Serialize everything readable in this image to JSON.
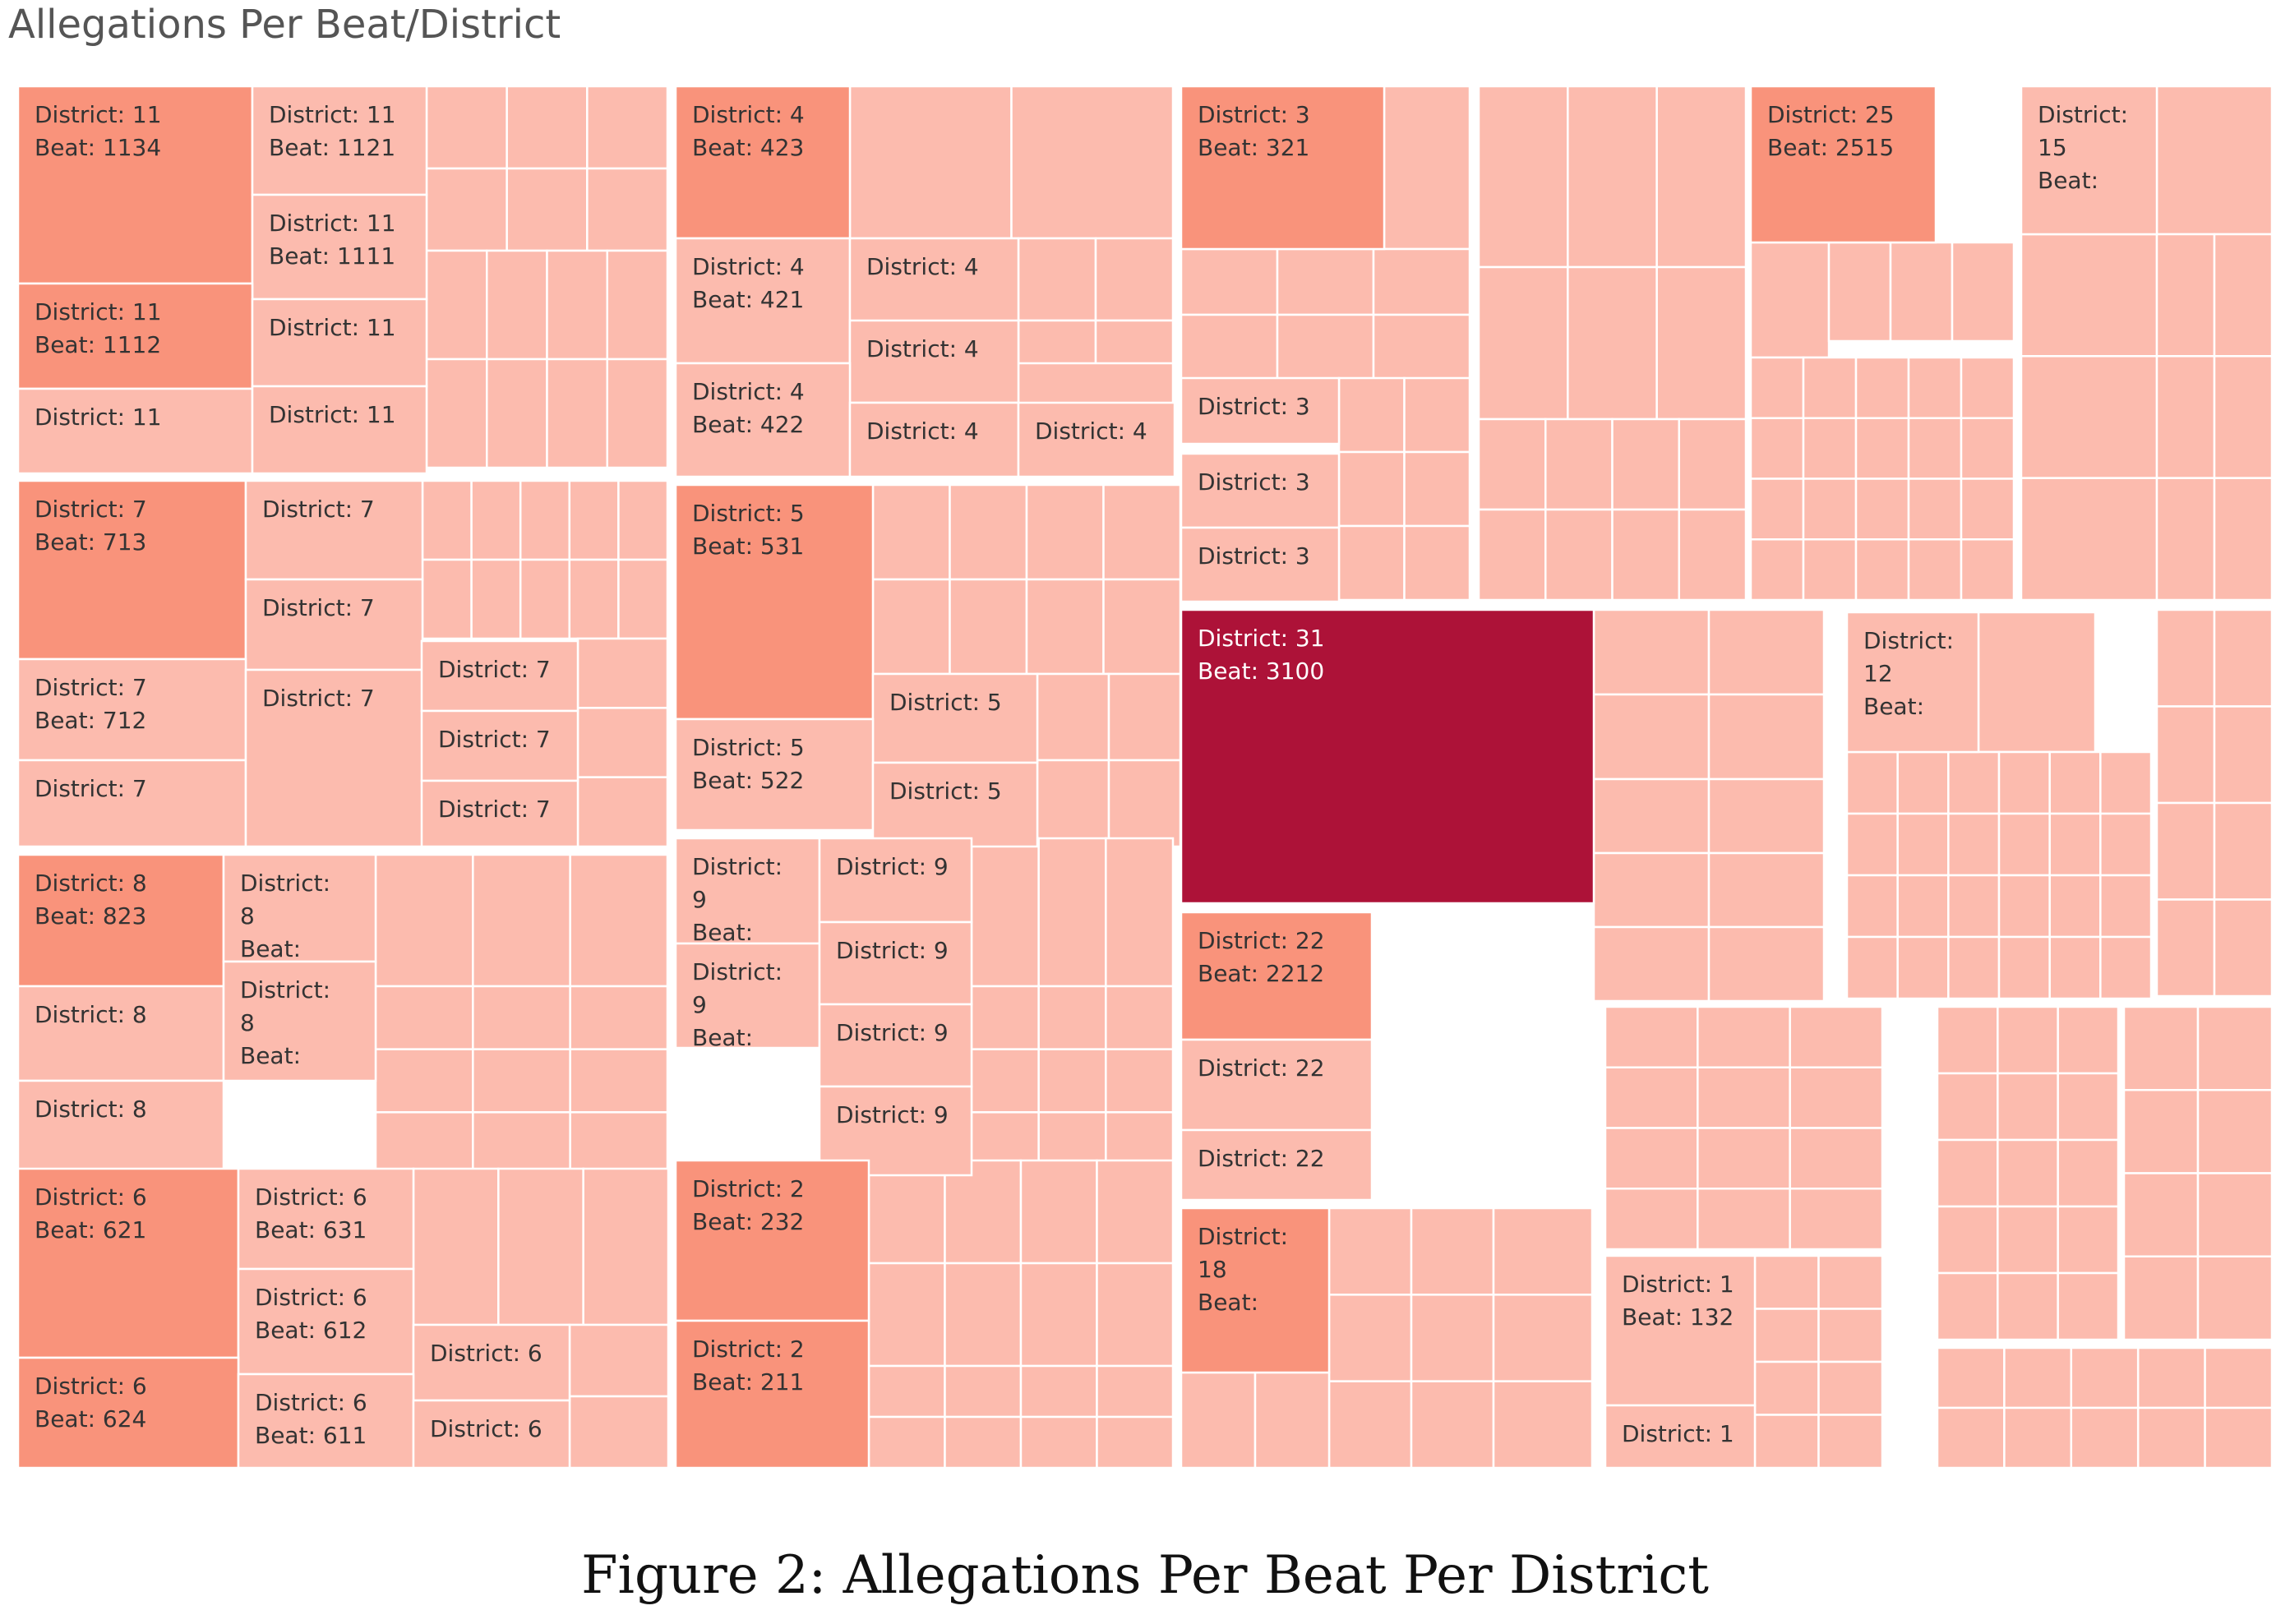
{
  "title": "Allegations Per Beat/District",
  "caption": "Figure 2: Allegations Per Beat Per District",
  "colors": {
    "light": "#fcbbae",
    "medium": "#f9937b",
    "dark": "#ad1238",
    "border": "#ffffff"
  },
  "chart_data": {
    "type": "treemap",
    "title": "Allegations Per Beat/District",
    "label_format": "District: <district> / Beat: <beat>",
    "color_scale": "light salmon (fewer allegations) to dark crimson (most allegations)",
    "labeled_tiles": [
      {
        "district": "11",
        "beat": "1134",
        "level": "medium"
      },
      {
        "district": "11",
        "beat": "1121",
        "level": "light"
      },
      {
        "district": "11",
        "beat": "1111",
        "level": "light"
      },
      {
        "district": "11",
        "beat": "1112",
        "level": "medium"
      },
      {
        "district": "11",
        "beat": "",
        "level": "light"
      },
      {
        "district": "11",
        "beat": "",
        "level": "light"
      },
      {
        "district": "11",
        "beat": "",
        "level": "light"
      },
      {
        "district": "4",
        "beat": "423",
        "level": "medium"
      },
      {
        "district": "4",
        "beat": "421",
        "level": "light"
      },
      {
        "district": "4",
        "beat": "",
        "level": "light"
      },
      {
        "district": "4",
        "beat": "",
        "level": "light"
      },
      {
        "district": "4",
        "beat": "422",
        "level": "light"
      },
      {
        "district": "4",
        "beat": "",
        "level": "light"
      },
      {
        "district": "4",
        "beat": "",
        "level": "light"
      },
      {
        "district": "3",
        "beat": "321",
        "level": "medium"
      },
      {
        "district": "3",
        "beat": "",
        "level": "light"
      },
      {
        "district": "3",
        "beat": "",
        "level": "light"
      },
      {
        "district": "3",
        "beat": "",
        "level": "light"
      },
      {
        "district": "25",
        "beat": "2515",
        "level": "medium"
      },
      {
        "district": "15",
        "beat": "",
        "level": "light"
      },
      {
        "district": "7",
        "beat": "713",
        "level": "medium"
      },
      {
        "district": "7",
        "beat": "",
        "level": "light"
      },
      {
        "district": "7",
        "beat": "",
        "level": "light"
      },
      {
        "district": "7",
        "beat": "712",
        "level": "light"
      },
      {
        "district": "7",
        "beat": "",
        "level": "light"
      },
      {
        "district": "7",
        "beat": "",
        "level": "light"
      },
      {
        "district": "7",
        "beat": "",
        "level": "light"
      },
      {
        "district": "7",
        "beat": "",
        "level": "light"
      },
      {
        "district": "7",
        "beat": "",
        "level": "light"
      },
      {
        "district": "5",
        "beat": "531",
        "level": "medium"
      },
      {
        "district": "5",
        "beat": "",
        "level": "light"
      },
      {
        "district": "5",
        "beat": "522",
        "level": "light"
      },
      {
        "district": "5",
        "beat": "",
        "level": "light"
      },
      {
        "district": "31",
        "beat": "3100",
        "level": "dark"
      },
      {
        "district": "12",
        "beat": "",
        "level": "light"
      },
      {
        "district": "8",
        "beat": "823",
        "level": "medium"
      },
      {
        "district": "8",
        "beat": "",
        "level": "light"
      },
      {
        "district": "8",
        "beat": "",
        "level": "light"
      },
      {
        "district": "8",
        "beat": "",
        "level": "light"
      },
      {
        "district": "8",
        "beat": "",
        "level": "light"
      },
      {
        "district": "9",
        "beat": "",
        "level": "light"
      },
      {
        "district": "9",
        "beat": "",
        "level": "light"
      },
      {
        "district": "9",
        "beat": "",
        "level": "light"
      },
      {
        "district": "9",
        "beat": "",
        "level": "light"
      },
      {
        "district": "9",
        "beat": "",
        "level": "light"
      },
      {
        "district": "9",
        "beat": "",
        "level": "light"
      },
      {
        "district": "22",
        "beat": "2212",
        "level": "medium"
      },
      {
        "district": "22",
        "beat": "",
        "level": "light"
      },
      {
        "district": "22",
        "beat": "",
        "level": "light"
      },
      {
        "district": "6",
        "beat": "621",
        "level": "medium"
      },
      {
        "district": "6",
        "beat": "631",
        "level": "light"
      },
      {
        "district": "6",
        "beat": "612",
        "level": "light"
      },
      {
        "district": "6",
        "beat": "",
        "level": "light"
      },
      {
        "district": "6",
        "beat": "624",
        "level": "medium"
      },
      {
        "district": "6",
        "beat": "611",
        "level": "light"
      },
      {
        "district": "6",
        "beat": "",
        "level": "light"
      },
      {
        "district": "2",
        "beat": "232",
        "level": "medium"
      },
      {
        "district": "2",
        "beat": "211",
        "level": "medium"
      },
      {
        "district": "18",
        "beat": "",
        "level": "medium"
      },
      {
        "district": "1",
        "beat": "132",
        "level": "light"
      },
      {
        "district": "1",
        "beat": "",
        "level": "light"
      }
    ]
  }
}
